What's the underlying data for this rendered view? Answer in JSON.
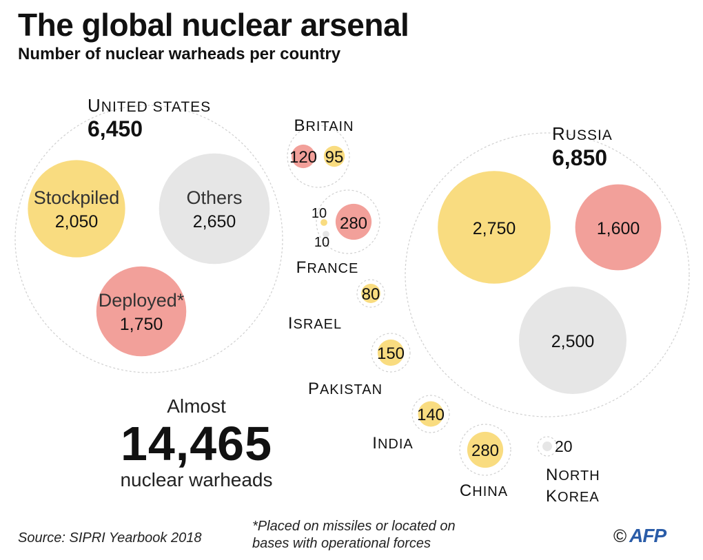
{
  "title": "The global nuclear arsenal",
  "subtitle": "Number of nuclear warheads per country",
  "total": {
    "prefix": "Almost",
    "value": "14,465",
    "unit": "nuclear warheads"
  },
  "source": "Source: SIPRI Yearbook 2018",
  "footnote_lines": [
    "*Placed on missiles or located on",
    "bases with operational forces"
  ],
  "credit": {
    "symbol": "©",
    "logo": "AFP"
  },
  "colors": {
    "stockpiled": "#f9dc80",
    "deployed": "#f2a09a",
    "others": "#e6e6e6",
    "outline": "#cfcfcf"
  },
  "chart_data": {
    "type": "bubble",
    "title": "The global nuclear arsenal",
    "subtitle": "Number of nuclear warheads per country",
    "categories": [
      "Stockpiled",
      "Deployed*",
      "Others"
    ],
    "countries": [
      {
        "name": "United States",
        "display_name": [
          "UNITED STATES"
        ],
        "total": 6450,
        "total_label": "6,450",
        "warheads": [
          {
            "category": "Stockpiled",
            "value": 2050,
            "label": "2,050",
            "name_label": "Stockpiled"
          },
          {
            "category": "Others",
            "value": 2650,
            "label": "2,650",
            "name_label": "Others"
          },
          {
            "category": "Deployed*",
            "value": 1750,
            "label": "1,750",
            "name_label": "Deployed*"
          }
        ]
      },
      {
        "name": "Russia",
        "display_name": [
          "RUSSIA"
        ],
        "total": 6850,
        "total_label": "6,850",
        "warheads": [
          {
            "category": "Stockpiled",
            "value": 2750,
            "label": "2,750"
          },
          {
            "category": "Deployed*",
            "value": 1600,
            "label": "1,600"
          },
          {
            "category": "Others",
            "value": 2500,
            "label": "2,500"
          }
        ]
      },
      {
        "name": "Britain",
        "display_name": [
          "BRITAIN"
        ],
        "total": 215,
        "warheads": [
          {
            "category": "Deployed*",
            "value": 120,
            "label": "120"
          },
          {
            "category": "Stockpiled",
            "value": 95,
            "label": "95"
          }
        ]
      },
      {
        "name": "France",
        "display_name": [
          "FRANCE"
        ],
        "total": 300,
        "warheads": [
          {
            "category": "Stockpiled",
            "value": 10,
            "label": "10"
          },
          {
            "category": "Deployed*",
            "value": 280,
            "label": "280"
          },
          {
            "category": "Others",
            "value": 10,
            "label": "10"
          }
        ]
      },
      {
        "name": "Israel",
        "display_name": [
          "ISRAEL"
        ],
        "total": 80,
        "warheads": [
          {
            "category": "Stockpiled",
            "value": 80,
            "label": "80"
          }
        ]
      },
      {
        "name": "Pakistan",
        "display_name": [
          "PAKISTAN"
        ],
        "total": 150,
        "warheads": [
          {
            "category": "Stockpiled",
            "value": 150,
            "label": "150"
          }
        ]
      },
      {
        "name": "India",
        "display_name": [
          "INDIA"
        ],
        "total": 140,
        "warheads": [
          {
            "category": "Stockpiled",
            "value": 140,
            "label": "140"
          }
        ]
      },
      {
        "name": "China",
        "display_name": [
          "CHINA"
        ],
        "total": 280,
        "warheads": [
          {
            "category": "Stockpiled",
            "value": 280,
            "label": "280"
          }
        ]
      },
      {
        "name": "North Korea",
        "display_name": [
          "NORTH",
          "KOREA"
        ],
        "total": 20,
        "warheads": [
          {
            "category": "Others",
            "value": 20,
            "label": "20"
          }
        ]
      }
    ]
  }
}
